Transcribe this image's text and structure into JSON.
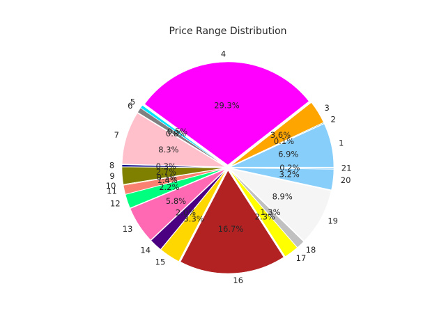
{
  "chart_data": {
    "type": "pie",
    "title": "Price Range Distribution",
    "start_angle_deg": 0,
    "direction": "counterclockwise",
    "slices": [
      {
        "label": "1",
        "pct": "6.9%",
        "value": 6.9,
        "color": "#87cefa"
      },
      {
        "label": "2",
        "pct": "0.1%",
        "value": 0.1,
        "color": "#008080"
      },
      {
        "label": "3",
        "pct": "3.6%",
        "value": 3.6,
        "color": "#ffa500"
      },
      {
        "label": "4",
        "pct": "29.3%",
        "value": 29.3,
        "color": "#ff00ff"
      },
      {
        "label": "5",
        "pct": "0.5%",
        "value": 0.5,
        "color": "#00e5ff"
      },
      {
        "label": "6",
        "pct": "0.8%",
        "value": 0.8,
        "color": "#808080"
      },
      {
        "label": "7",
        "pct": "8.3%",
        "value": 8.3,
        "color": "#ffc0cb"
      },
      {
        "label": "8",
        "pct": "0.3%",
        "value": 0.3,
        "color": "#000080"
      },
      {
        "label": "9",
        "pct": "2.7%",
        "value": 2.7,
        "color": "#808000"
      },
      {
        "label": "10",
        "pct": "0.1%",
        "value": 0.1,
        "color": "#ffd700"
      },
      {
        "label": "11",
        "pct": "1.4%",
        "value": 1.4,
        "color": "#fa8072"
      },
      {
        "label": "12",
        "pct": "2.2%",
        "value": 2.2,
        "color": "#00ff7f"
      },
      {
        "label": "13",
        "pct": "5.8%",
        "value": 5.8,
        "color": "#ff69b4"
      },
      {
        "label": "14",
        "pct": "2.0%",
        "value": 2.0,
        "color": "#4b0082"
      },
      {
        "label": "15",
        "pct": "3.3%",
        "value": 3.3,
        "color": "#ffd700"
      },
      {
        "label": "16",
        "pct": "16.7%",
        "value": 16.7,
        "color": "#b22222"
      },
      {
        "label": "17",
        "pct": "2.3%",
        "value": 2.3,
        "color": "#ffff00"
      },
      {
        "label": "18",
        "pct": "1.3%",
        "value": 1.3,
        "color": "#c0c0c0"
      },
      {
        "label": "19",
        "pct": "8.9%",
        "value": 8.9,
        "color": "#f5f5f5"
      },
      {
        "label": "20",
        "pct": "3.2%",
        "value": 3.2,
        "color": "#87cefa"
      },
      {
        "label": "21",
        "pct": "0.2%",
        "value": 0.2,
        "color": "#87cefa"
      }
    ]
  }
}
